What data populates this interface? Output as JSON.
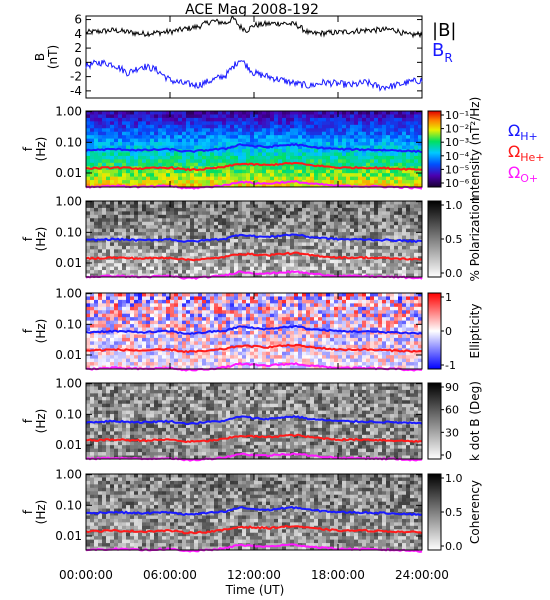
{
  "title": "ACE Mag 2008-192",
  "x_axis": {
    "label": "Time (UT)",
    "ticks": [
      "00:00:00",
      "06:00:00",
      "12:00:00",
      "18:00:00",
      "24:00:00"
    ]
  },
  "frequency_ticks": [
    "1.00",
    "0.10",
    "0.01"
  ],
  "ion_labels": {
    "h": {
      "symbol": "Ω",
      "sub": "H+",
      "color": "#1a1aff"
    },
    "he": {
      "symbol": "Ω",
      "sub": "He+",
      "color": "#ff1a1a"
    },
    "o": {
      "symbol": "Ω",
      "sub": "O+",
      "color": "#ff1aff"
    }
  },
  "colors": {
    "btotal": "#000000",
    "br": "#1a1aff",
    "h_line": "#1a1aff",
    "he_line": "#ff1a1a",
    "o_line": "#ff1aff"
  },
  "chart_data": [
    {
      "type": "line",
      "panel": "magnetic-field",
      "ylabel": "B (nT)",
      "yticks": [
        "6",
        "4",
        "2",
        "0",
        "-2",
        "-4"
      ],
      "ylim": [
        -5,
        6.5
      ],
      "series": [
        {
          "name": "|B|",
          "x_hours": [
            0,
            2,
            4,
            6,
            8,
            9,
            10,
            10.5,
            11,
            11.5,
            12,
            13,
            14,
            15,
            16,
            18,
            20,
            22,
            23,
            24
          ],
          "values": [
            4.2,
            4.5,
            4.0,
            4.3,
            5.0,
            5.8,
            5.5,
            6.2,
            5.0,
            4.5,
            5.2,
            5.4,
            5.5,
            5.3,
            4.0,
            4.2,
            4.5,
            4.6,
            3.8,
            4.0
          ]
        },
        {
          "name": "B",
          "sub": "R",
          "x_hours": [
            0,
            1,
            2,
            3,
            4,
            5,
            6,
            7,
            8,
            9,
            10,
            11,
            12,
            13,
            14,
            15,
            16,
            17,
            18,
            19,
            20,
            21,
            22,
            23,
            24
          ],
          "values": [
            -0.5,
            0.0,
            -0.3,
            -1.5,
            -0.5,
            -1.0,
            -2.5,
            -3.0,
            -3.2,
            -2.5,
            -1.8,
            0.5,
            -1.5,
            -2.0,
            -2.5,
            -3.0,
            -3.3,
            -2.8,
            -3.0,
            -3.2,
            -2.8,
            -3.5,
            -3.3,
            -2.8,
            -2.5
          ]
        }
      ]
    },
    {
      "type": "heatmap",
      "panel": "intensity-spectrogram",
      "ylabel": "f (Hz)",
      "colorbar_label": "Intensity (nT²/Hz)",
      "colorbar_ticks": [
        "10⁻¹",
        "10⁻²",
        "10⁻³",
        "10⁻⁴",
        "10⁻⁵",
        "10⁻⁶"
      ]
    },
    {
      "type": "heatmap",
      "panel": "polarization",
      "ylabel": "f (Hz)",
      "colorbar_label": "% Polarization",
      "colorbar_ticks": [
        "1.0",
        "0.5",
        "0.0"
      ]
    },
    {
      "type": "heatmap",
      "panel": "ellipticity",
      "ylabel": "f (Hz)",
      "colorbar_label": "Ellipticity",
      "colorbar_ticks": [
        "1",
        "0",
        "-1"
      ]
    },
    {
      "type": "heatmap",
      "panel": "k-dot-b",
      "ylabel": "f (Hz)",
      "colorbar_label": "k dot B (Deg)",
      "colorbar_ticks": [
        "90",
        "60",
        "30",
        "0"
      ]
    },
    {
      "type": "heatmap",
      "panel": "coherency",
      "ylabel": "f (Hz)",
      "colorbar_label": "Coherency",
      "colorbar_ticks": [
        "1.0",
        "0.5",
        "0.0"
      ]
    }
  ],
  "gyrofrequency_lines_hz": {
    "x_hours": [
      0,
      2,
      4,
      6,
      7,
      8,
      9,
      10,
      11,
      12,
      13,
      14,
      15,
      16,
      18,
      20,
      22,
      24
    ],
    "h": [
      0.055,
      0.06,
      0.055,
      0.06,
      0.05,
      0.052,
      0.058,
      0.062,
      0.085,
      0.075,
      0.07,
      0.08,
      0.085,
      0.07,
      0.06,
      0.058,
      0.055,
      0.05
    ],
    "he": [
      0.014,
      0.015,
      0.014,
      0.015,
      0.013,
      0.013,
      0.014,
      0.016,
      0.02,
      0.019,
      0.018,
      0.02,
      0.021,
      0.018,
      0.015,
      0.015,
      0.014,
      0.013
    ],
    "o": [
      0.0035,
      0.0038,
      0.0035,
      0.0038,
      0.0032,
      0.0033,
      0.0036,
      0.004,
      0.0052,
      0.0047,
      0.0045,
      0.005,
      0.0052,
      0.0045,
      0.0038,
      0.0037,
      0.0035,
      0.0032
    ]
  }
}
